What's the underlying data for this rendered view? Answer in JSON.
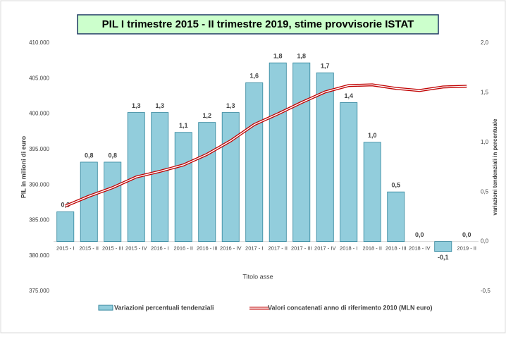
{
  "chart_data": {
    "type": "bar",
    "title": "PIL I trimestre 2015 - II trimestre 2019, stime provvisorie ISTAT",
    "xlabel": "Titolo asse",
    "ylabel": "PIL in milioni di euro",
    "y2label": "variazioni tendenziali in percentuale",
    "categories": [
      "2015 - I",
      "2015 - II",
      "2015 - III",
      "2015 - IV",
      "2016 - I",
      "2016 - II",
      "2016 - III",
      "2016 - IV",
      "2017 - I",
      "2017 - II",
      "2017 - III",
      "2017 - IV",
      "2018 - I",
      "2018 - II",
      "2018 - III",
      "2018 - IV",
      "2019 - I",
      "2019 - II"
    ],
    "series": [
      {
        "name": "Variazioni percentuali tendenziali",
        "type": "bar",
        "axis": "y2",
        "color": "#92cddc",
        "values": [
          0.3,
          0.8,
          0.8,
          1.3,
          1.3,
          1.1,
          1.2,
          1.3,
          1.6,
          1.8,
          1.8,
          1.7,
          1.4,
          1.0,
          0.5,
          0.0,
          -0.1,
          0.0
        ],
        "value_labels": [
          "0,3",
          "0,8",
          "0,8",
          "1,3",
          "1,3",
          "1,1",
          "1,2",
          "1,3",
          "1,6",
          "1,8",
          "1,8",
          "1,7",
          "1,4",
          "1,0",
          "0,5",
          "0,0",
          "-0,1",
          "0,0"
        ]
      },
      {
        "name": "Valori concatenati anno di riferimento 2010  (MLN euro)",
        "type": "line",
        "axis": "y",
        "color": "#c00000",
        "values": [
          387000,
          388400,
          389600,
          391100,
          391900,
          392800,
          394300,
          396200,
          398500,
          400000,
          401600,
          403100,
          404000,
          404100,
          403600,
          403300,
          403800,
          403900
        ]
      }
    ],
    "ylim": [
      375000,
      410000
    ],
    "yticks": [
      {
        "value": 375000,
        "label": "375.000"
      },
      {
        "value": 380000,
        "label": "380.000"
      },
      {
        "value": 385000,
        "label": "385.000"
      },
      {
        "value": 390000,
        "label": "390.000"
      },
      {
        "value": 395000,
        "label": "395.000"
      },
      {
        "value": 400000,
        "label": "400.000"
      },
      {
        "value": 405000,
        "label": "405.000"
      },
      {
        "value": 410000,
        "label": "410.000"
      }
    ],
    "y2lim": [
      -0.5,
      2.0
    ],
    "y2ticks": [
      {
        "value": -0.5,
        "label": "-0,5"
      },
      {
        "value": 0,
        "label": "0,0"
      },
      {
        "value": 0.5,
        "label": "0,5"
      },
      {
        "value": 1,
        "label": "1,0"
      },
      {
        "value": 1.5,
        "label": "1,5"
      },
      {
        "value": 2,
        "label": "2,0"
      }
    ],
    "legend": "bottom"
  }
}
